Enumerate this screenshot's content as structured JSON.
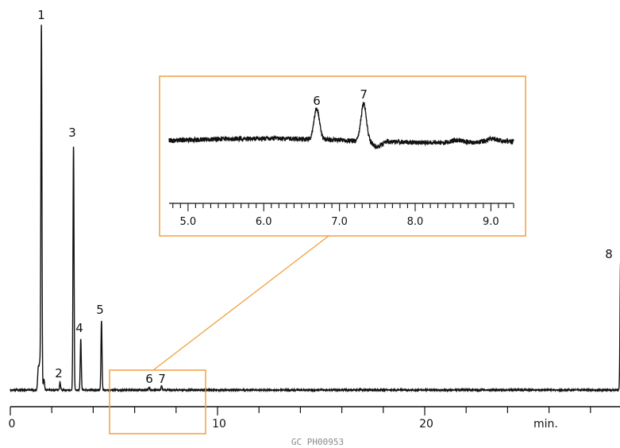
{
  "chart_data": {
    "type": "line",
    "subtype": "chromatogram",
    "x_unit_label": "min.",
    "xlim": [
      0,
      29.5
    ],
    "main_ticks": {
      "major": [
        0,
        10,
        20
      ],
      "major_labels": [
        "0",
        "10",
        "20"
      ],
      "minor_step": 2
    },
    "peaks": [
      {
        "label": "1",
        "x": 1.5,
        "height": 1.0
      },
      {
        "label": "2",
        "x": 2.4,
        "height": 0.02
      },
      {
        "label": "3",
        "x": 3.05,
        "height": 0.67
      },
      {
        "label": "4",
        "x": 3.4,
        "height": 0.14
      },
      {
        "label": "5",
        "x": 4.4,
        "height": 0.19
      },
      {
        "label": "6",
        "x": 6.7,
        "height": 0.008
      },
      {
        "label": "7",
        "x": 7.3,
        "height": 0.012
      },
      {
        "label": "8",
        "x": 29.45,
        "height": 0.35
      }
    ],
    "zoom_region": [
      4.8,
      9.3
    ],
    "inset": {
      "xlim": [
        4.75,
        9.3
      ],
      "major_ticks": [
        5.0,
        6.0,
        7.0,
        8.0,
        9.0
      ],
      "major_labels": [
        "5.0",
        "6.0",
        "7.0",
        "8.0",
        "9.0"
      ],
      "minor_step": 0.1,
      "peaks": [
        {
          "label": "6",
          "x": 6.7
        },
        {
          "label": "7",
          "x": 7.32
        }
      ]
    },
    "accent_color": "#f0a040",
    "line_color": "#111111"
  },
  "footer": {
    "code": "GC  PH00953"
  }
}
